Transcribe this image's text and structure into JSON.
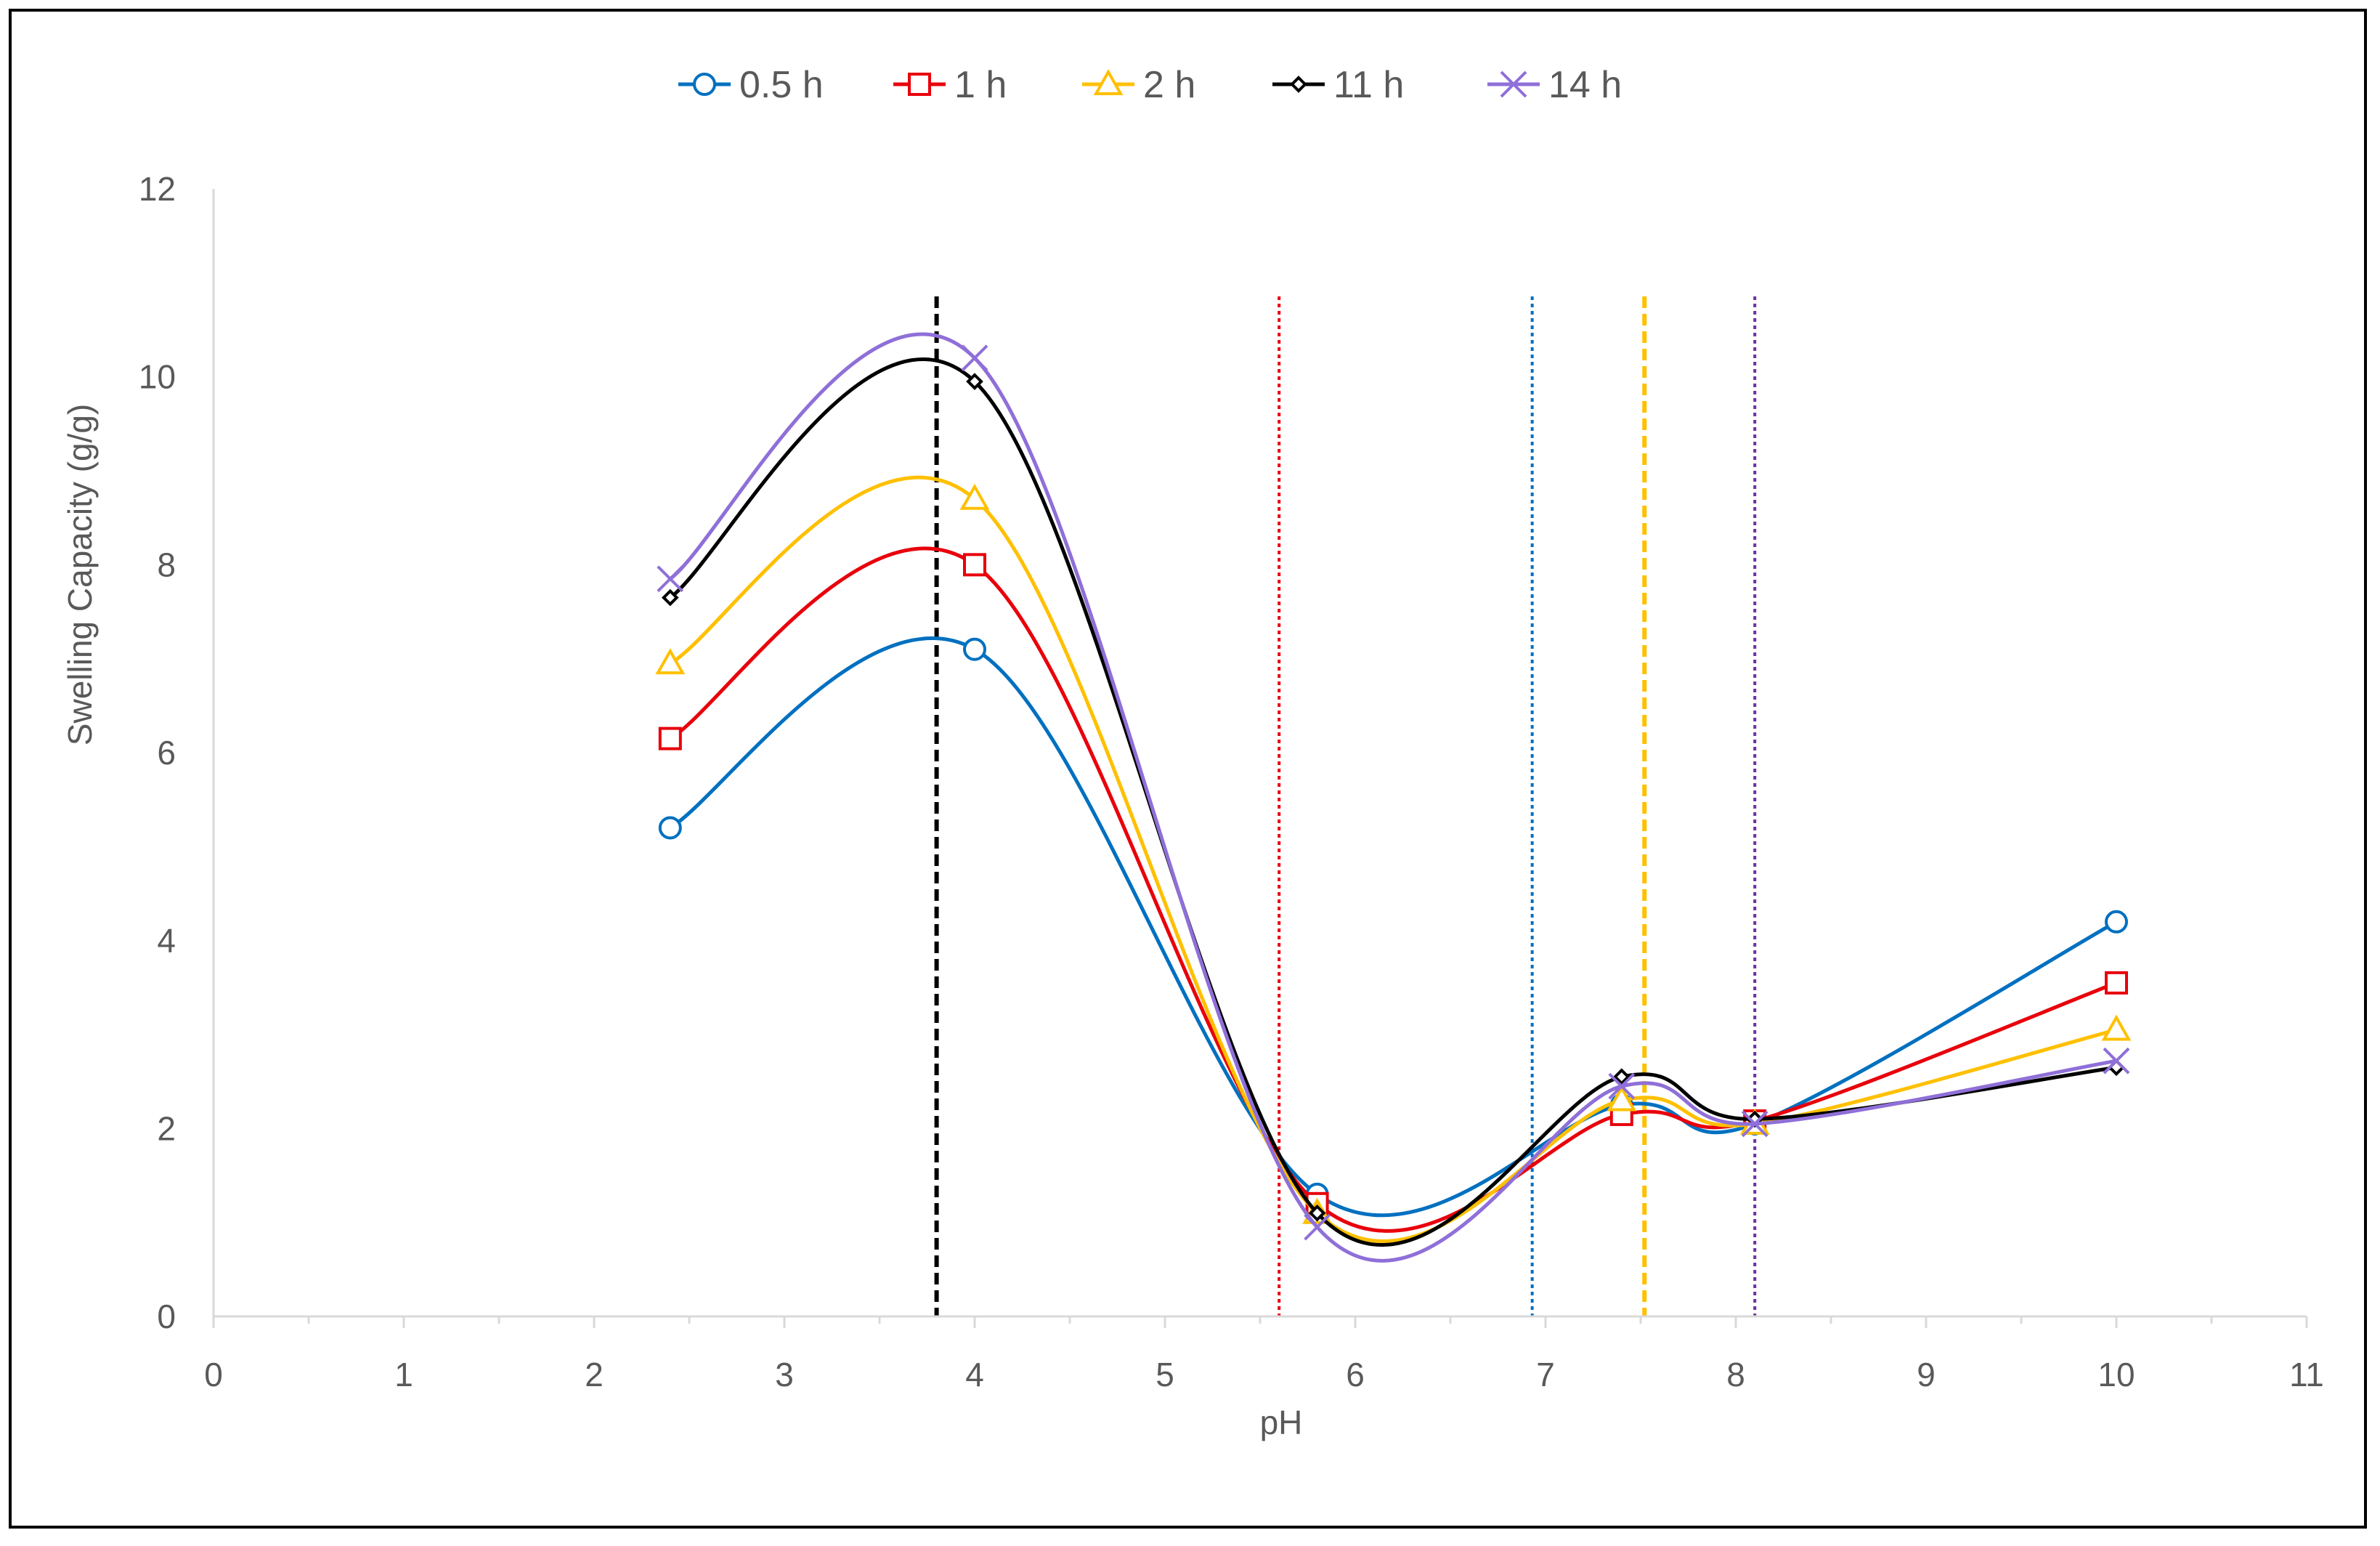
{
  "chart_data": {
    "type": "line",
    "xlabel": "pH",
    "ylabel": "Swelling Capacity (g/g)",
    "xlim": [
      0,
      11
    ],
    "ylim": [
      0,
      12
    ],
    "x_ticks": [
      "0",
      "1",
      "2",
      "3",
      "4",
      "5",
      "6",
      "7",
      "8",
      "9",
      "10",
      "11"
    ],
    "y_ticks": [
      "0",
      "2",
      "4",
      "6",
      "8",
      "10",
      "12"
    ],
    "grid": false,
    "legend_position": "top",
    "x": [
      2.4,
      4,
      5.8,
      7.4,
      8.1,
      10
    ],
    "series": [
      {
        "name": "0.5 h",
        "color": "#0070C0",
        "marker": "circle",
        "values": [
          5.2,
          7.1,
          1.3,
          2.25,
          2.05,
          4.2
        ]
      },
      {
        "name": "1 h",
        "color": "#E8000B",
        "marker": "square",
        "values": [
          6.15,
          8.0,
          1.2,
          2.15,
          2.08,
          3.55
        ]
      },
      {
        "name": "2 h",
        "color": "#FFC000",
        "marker": "triangle",
        "values": [
          6.95,
          8.7,
          1.1,
          2.3,
          2.05,
          3.05
        ]
      },
      {
        "name": "11 h",
        "color": "#000000",
        "marker": "diamond",
        "values": [
          7.65,
          9.95,
          1.1,
          2.55,
          2.1,
          2.65
        ]
      },
      {
        "name": "14 h",
        "color": "#8F6FD8",
        "marker": "cross",
        "values": [
          7.85,
          10.2,
          0.95,
          2.45,
          2.05,
          2.72
        ]
      }
    ],
    "reference_lines": [
      {
        "x": 3.8,
        "color": "#000000",
        "style": "dashed"
      },
      {
        "x": 5.6,
        "color": "#E8000B",
        "style": "dotted"
      },
      {
        "x": 6.93,
        "color": "#0070C0",
        "style": "dotted"
      },
      {
        "x": 7.52,
        "color": "#FFC000",
        "style": "dashed"
      },
      {
        "x": 8.1,
        "color": "#7030A0",
        "style": "dotted"
      }
    ]
  }
}
